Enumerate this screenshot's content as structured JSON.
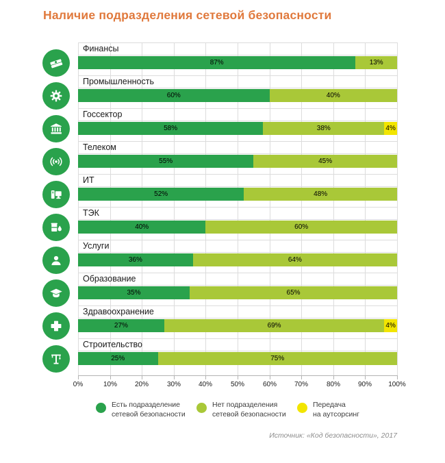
{
  "title": "Наличие подразделения сетевой безопасности",
  "source": "Источник: «Код безопасности», 2017",
  "colors": {
    "title": "#e0793c",
    "has_unit": "#2aa24c",
    "no_unit": "#a9c838",
    "outsourcing": "#f2e500",
    "icon_circle": "#2aa24c",
    "gridline": "#dcdcdc",
    "axis": "#b3b3b3"
  },
  "chart_data": {
    "type": "bar",
    "orientation": "horizontal",
    "stacked": true,
    "grid": true,
    "xlim": [
      0,
      100
    ],
    "value_suffix": "%",
    "x_ticks": [
      "0%",
      "10%",
      "20%",
      "30%",
      "40%",
      "50%",
      "60%",
      "70%",
      "80%",
      "90%",
      "100%"
    ],
    "categories": [
      "Финансы",
      "Промышленность",
      "Госсектор",
      "Телеком",
      "ИТ",
      "ТЭК",
      "Услуги",
      "Образование",
      "Здравоохранение",
      "Строительство"
    ],
    "category_icons": [
      "money-icon",
      "gear-icon",
      "bank-icon",
      "antenna-icon",
      "computer-icon",
      "oil-icon",
      "person-icon",
      "graduation-cap-icon",
      "medical-cross-icon",
      "crane-icon"
    ],
    "series": [
      {
        "name": "Есть подразделение сетевой безопасности",
        "color": "#2aa24c",
        "values": [
          87,
          60,
          58,
          55,
          52,
          40,
          36,
          35,
          27,
          25
        ]
      },
      {
        "name": "Нет подразделения сетевой безопасности",
        "color": "#a9c838",
        "values": [
          13,
          40,
          38,
          45,
          48,
          60,
          64,
          65,
          69,
          75
        ]
      },
      {
        "name": "Передача на аутсорсинг",
        "color": "#f2e500",
        "values": [
          0,
          0,
          4,
          0,
          0,
          0,
          0,
          0,
          4,
          0
        ]
      }
    ],
    "legend_position": "bottom"
  },
  "legend": {
    "items": [
      {
        "color": "#2aa24c",
        "label_lines": [
          "Есть подразделение",
          "сетевой безопасности"
        ]
      },
      {
        "color": "#a9c838",
        "label_lines": [
          "Нет подразделения",
          "сетевой безопасности"
        ]
      },
      {
        "color": "#f2e500",
        "label_lines": [
          "Передача",
          "на аутсорсинг"
        ]
      }
    ]
  }
}
